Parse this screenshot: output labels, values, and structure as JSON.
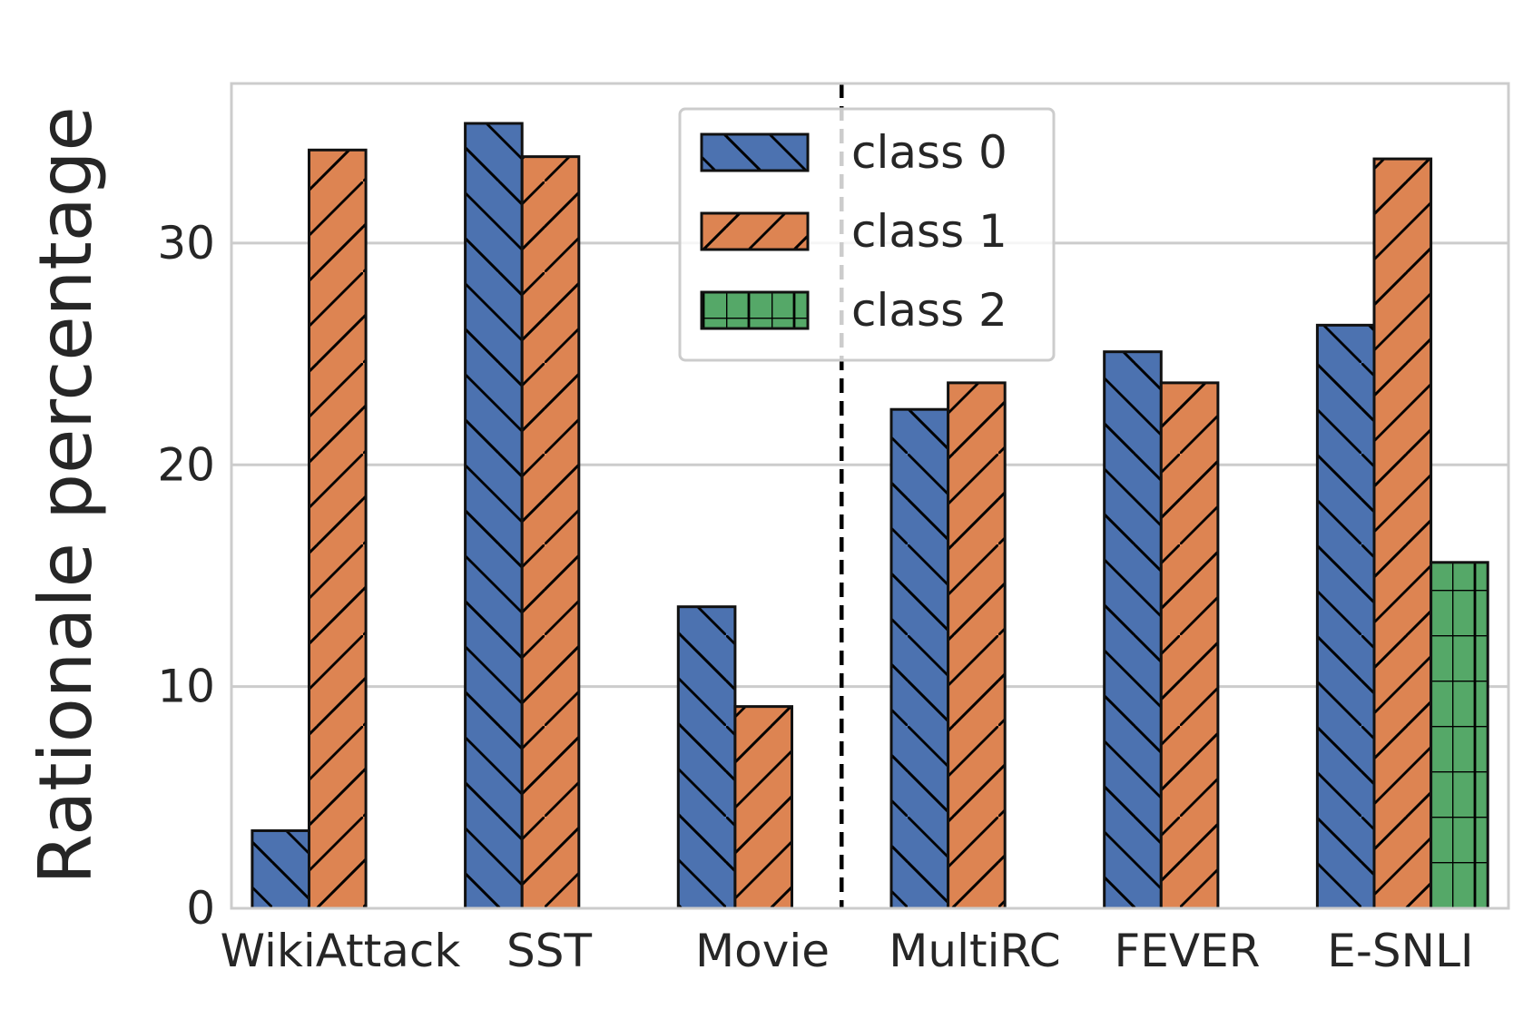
{
  "chart_data": {
    "type": "bar",
    "title": "",
    "xlabel": "",
    "ylabel": "Rationale percentage",
    "categories": [
      "WikiAttack",
      "SST",
      "Movie",
      "MultiRC",
      "FEVER",
      "E-SNLI"
    ],
    "series": [
      {
        "name": "class 0",
        "values": [
          3.5,
          35.4,
          13.6,
          22.5,
          25.1,
          26.3
        ],
        "color": "#4c72b0",
        "hatch": "backslash"
      },
      {
        "name": "class 1",
        "values": [
          34.2,
          33.9,
          9.1,
          23.7,
          23.7,
          33.8
        ],
        "color": "#dd8452",
        "hatch": "slash"
      },
      {
        "name": "class 2",
        "values": [
          null,
          null,
          null,
          null,
          null,
          15.6
        ],
        "color": "#55a868",
        "hatch": "grid"
      }
    ],
    "yticks": [
      0,
      10,
      20,
      30
    ],
    "ylim": [
      0,
      37.2
    ],
    "grid": true,
    "divider_after_category": "Movie",
    "legend_position": "top-center"
  }
}
